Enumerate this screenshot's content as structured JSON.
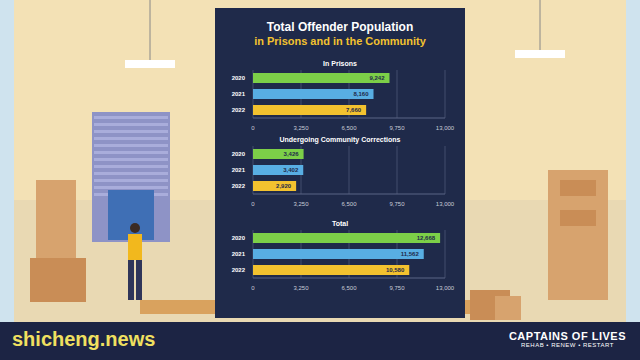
{
  "title": "Total Offender Population",
  "subtitle": "in Prisons and in the Community",
  "watermark": "shicheng.news",
  "logo": {
    "name": "CAPTAINS OF LIVES",
    "tagline": "REHAB • RENEW • RESTART"
  },
  "chart_data": [
    {
      "type": "bar",
      "title": "In Prisons",
      "orientation": "horizontal",
      "categories": [
        "2020",
        "2021",
        "2022"
      ],
      "values": [
        9242,
        8160,
        7660
      ],
      "value_labels": [
        "9,242",
        "8,160",
        "7,660"
      ],
      "colors": [
        "#7ccf48",
        "#58aee3",
        "#f3c22f"
      ],
      "data_labels": true,
      "grid": true,
      "xlim": [
        0,
        13000
      ],
      "xticks": [
        0,
        {
          "value": 3250,
          "label": "3,250"
        },
        {
          "value": 6500,
          "label": "6,500"
        },
        {
          "value": 9750,
          "label": "9,750"
        },
        {
          "value": 13000,
          "label": "13,000"
        }
      ]
    },
    {
      "type": "bar",
      "title": "Undergoing Community Corrections",
      "orientation": "horizontal",
      "categories": [
        "2020",
        "2021",
        "2022"
      ],
      "values": [
        3426,
        3402,
        2920
      ],
      "value_labels": [
        "3,426",
        "3,402",
        "2,920"
      ],
      "colors": [
        "#7ccf48",
        "#58aee3",
        "#f3c22f"
      ],
      "data_labels": true,
      "grid": true,
      "xlim": [
        0,
        13000
      ],
      "xticks": [
        0,
        {
          "value": 3250,
          "label": "3,250"
        },
        {
          "value": 6500,
          "label": "6,500"
        },
        {
          "value": 9750,
          "label": "9,750"
        },
        {
          "value": 13000,
          "label": "13,000"
        }
      ]
    },
    {
      "type": "bar",
      "title": "Total",
      "orientation": "horizontal",
      "categories": [
        "2020",
        "2021",
        "2022"
      ],
      "values": [
        12668,
        11562,
        10580
      ],
      "value_labels": [
        "12,668",
        "11,562",
        "10,580"
      ],
      "colors": [
        "#7ccf48",
        "#58aee3",
        "#f3c22f"
      ],
      "data_labels": true,
      "grid": true,
      "xlim": [
        0,
        13000
      ],
      "xticks": [
        0,
        {
          "value": 3250,
          "label": "3,250"
        },
        {
          "value": 6500,
          "label": "6,500"
        },
        {
          "value": 9750,
          "label": "9,750"
        },
        {
          "value": 13000,
          "label": "13,000"
        }
      ]
    }
  ]
}
